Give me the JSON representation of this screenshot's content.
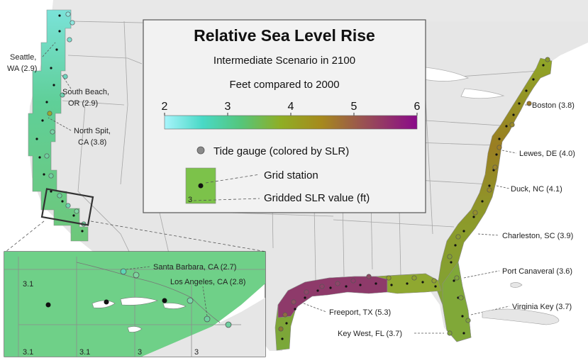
{
  "legend": {
    "title": "Relative Sea Level Rise",
    "scenario": "Intermediate Scenario in 2100",
    "units": "Feet compared to 2000",
    "ticks": [
      "2",
      "3",
      "4",
      "5",
      "6"
    ],
    "colorscale": [
      "#9ff0f8",
      "#3fd6b8",
      "#5fc06a",
      "#8aa82a",
      "#a07a28",
      "#9a4a62",
      "#8a0a8a"
    ],
    "tide_gauge_label": "Tide gauge (colored by SLR)",
    "grid_station_label": "Grid station",
    "gridded_value_label": "Gridded SLR value (ft)",
    "sample_cell_value": "3"
  },
  "west_labels": [
    {
      "line1": "Seattle,",
      "line2": "WA (2.9)"
    },
    {
      "line1": "South Beach,",
      "line2": "OR (2.9)"
    },
    {
      "line1": "North Spit,",
      "line2": "CA (3.8)"
    }
  ],
  "east_labels": [
    "Boston (3.8)",
    "Lewes, DE (4.0)",
    "Duck, NC (4.1)",
    "Charleston, SC (3.9)",
    "Port Canaveral (3.6)",
    "Virginia Key (3.7)",
    "Key West, FL (3.7)",
    "Freeport, TX (5.3)"
  ],
  "inset": {
    "labels": [
      "Santa Barbara, CA (2.7)",
      "Los Angeles, CA (2.8)"
    ],
    "cell_values": [
      "3.1",
      "3.1",
      "3.1",
      "3",
      "3"
    ]
  },
  "colors": {
    "land": "#e6e6e6",
    "water": "#ffffff",
    "border": "#9a9a9a",
    "coast": "#6a6a6a",
    "west_grid": "#7ccf86",
    "gauge": "#8a8a8a"
  }
}
